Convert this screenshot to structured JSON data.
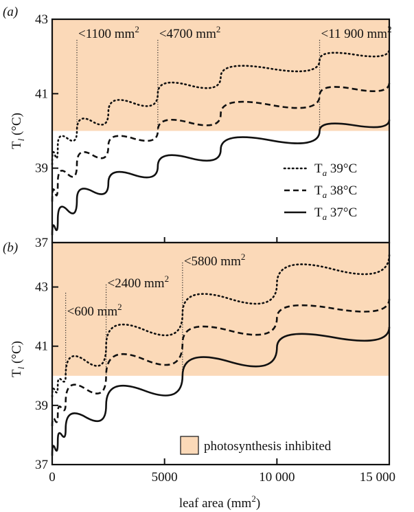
{
  "chart_data": [
    {
      "type": "line",
      "panel_label": "(a)",
      "xlabel": "leaf area (mm²)",
      "ylabel": "T_l (°C)",
      "xlim": [
        0,
        15000
      ],
      "ylim": [
        37,
        43
      ],
      "y_ticks": [
        "37",
        "39",
        "41",
        "43"
      ],
      "shaded_band": {
        "from": 40,
        "to": 43,
        "color": "#fbd9b8",
        "meaning": "photosynthesis inhibited"
      },
      "series": [
        {
          "name": "T_a 39°C",
          "style": "dotted",
          "x": [
            0,
            250,
            1100,
            2500,
            4700,
            7500,
            11900,
            15000
          ],
          "y": [
            39.1,
            39.6,
            40.0,
            40.5,
            41.0,
            41.45,
            41.9,
            42.2
          ]
        },
        {
          "name": "T_a 38°C",
          "style": "dashed",
          "x": [
            0,
            250,
            1100,
            2500,
            4700,
            7500,
            11900,
            15000
          ],
          "y": [
            38.1,
            38.6,
            39.1,
            39.6,
            40.0,
            40.45,
            40.95,
            41.3
          ]
        },
        {
          "name": "T_a 37°C",
          "style": "solid",
          "x": [
            0,
            250,
            1100,
            2500,
            4700,
            7500,
            11900,
            15000
          ],
          "y": [
            37.2,
            37.6,
            38.15,
            38.6,
            39.05,
            39.5,
            40.0,
            40.3
          ]
        }
      ],
      "annotations": [
        {
          "x": 1100,
          "text": "<1100 mm",
          "sup": "2"
        },
        {
          "x": 4700,
          "text": "<4700 mm",
          "sup": "2"
        },
        {
          "x": 11900,
          "text": "<11 900 mm",
          "sup": "2"
        }
      ],
      "legend": {
        "placement": "right-middle",
        "items": [
          {
            "label": "T",
            "sub": "a",
            "suffix": " 39°C",
            "style": "dotted"
          },
          {
            "label": "T",
            "sub": "a",
            "suffix": " 38°C",
            "style": "dashed"
          },
          {
            "label": "T",
            "sub": "a",
            "suffix": " 37°C",
            "style": "solid"
          }
        ]
      }
    },
    {
      "type": "line",
      "panel_label": "(b)",
      "xlabel": "leaf area (mm²)",
      "ylabel": "T_l (°C)",
      "xlim": [
        0,
        15000
      ],
      "ylim": [
        37,
        44.5
      ],
      "y_ticks": [
        "37",
        "39",
        "41",
        "43"
      ],
      "x_ticks": [
        "0",
        "5000",
        "10 000",
        "15 000"
      ],
      "shaded_band": {
        "from": 40,
        "to": 44.5,
        "color": "#fbd9b8",
        "meaning": "photosynthesis inhibited"
      },
      "series": [
        {
          "name": "T_a 39°C",
          "style": "dotted",
          "x": [
            0,
            250,
            600,
            2400,
            5800,
            10000,
            15000
          ],
          "y": [
            39.3,
            39.7,
            40.0,
            41.0,
            42.1,
            43.1,
            44.1
          ]
        },
        {
          "name": "T_a 38°C",
          "style": "dashed",
          "x": [
            0,
            250,
            600,
            2400,
            5800,
            10000,
            15000
          ],
          "y": [
            38.3,
            38.7,
            39.1,
            40.0,
            41.1,
            41.95,
            42.6
          ]
        },
        {
          "name": "T_a 37°C",
          "style": "solid",
          "x": [
            0,
            250,
            600,
            2400,
            5800,
            10000,
            15000
          ],
          "y": [
            37.3,
            37.8,
            38.2,
            39.0,
            40.0,
            40.95,
            41.65
          ]
        }
      ],
      "annotations": [
        {
          "x": 600,
          "text": "<600 mm",
          "sup": "2"
        },
        {
          "x": 2400,
          "text": "<2400 mm",
          "sup": "2"
        },
        {
          "x": 5800,
          "text": "<5800 mm",
          "sup": "2"
        }
      ],
      "legend": {
        "placement": "bottom-right",
        "items": [
          {
            "label": "photosynthesis inhibited",
            "swatch": "#fbd9b8"
          }
        ]
      }
    }
  ],
  "axis_labels": {
    "y_main": "T",
    "y_sub": "l",
    "y_unit": " (°C)",
    "x_main": "leaf area (mm",
    "x_sup": "2",
    "x_close": ")"
  },
  "colors": {
    "band": "#fbd9b8",
    "ink": "#111111"
  }
}
